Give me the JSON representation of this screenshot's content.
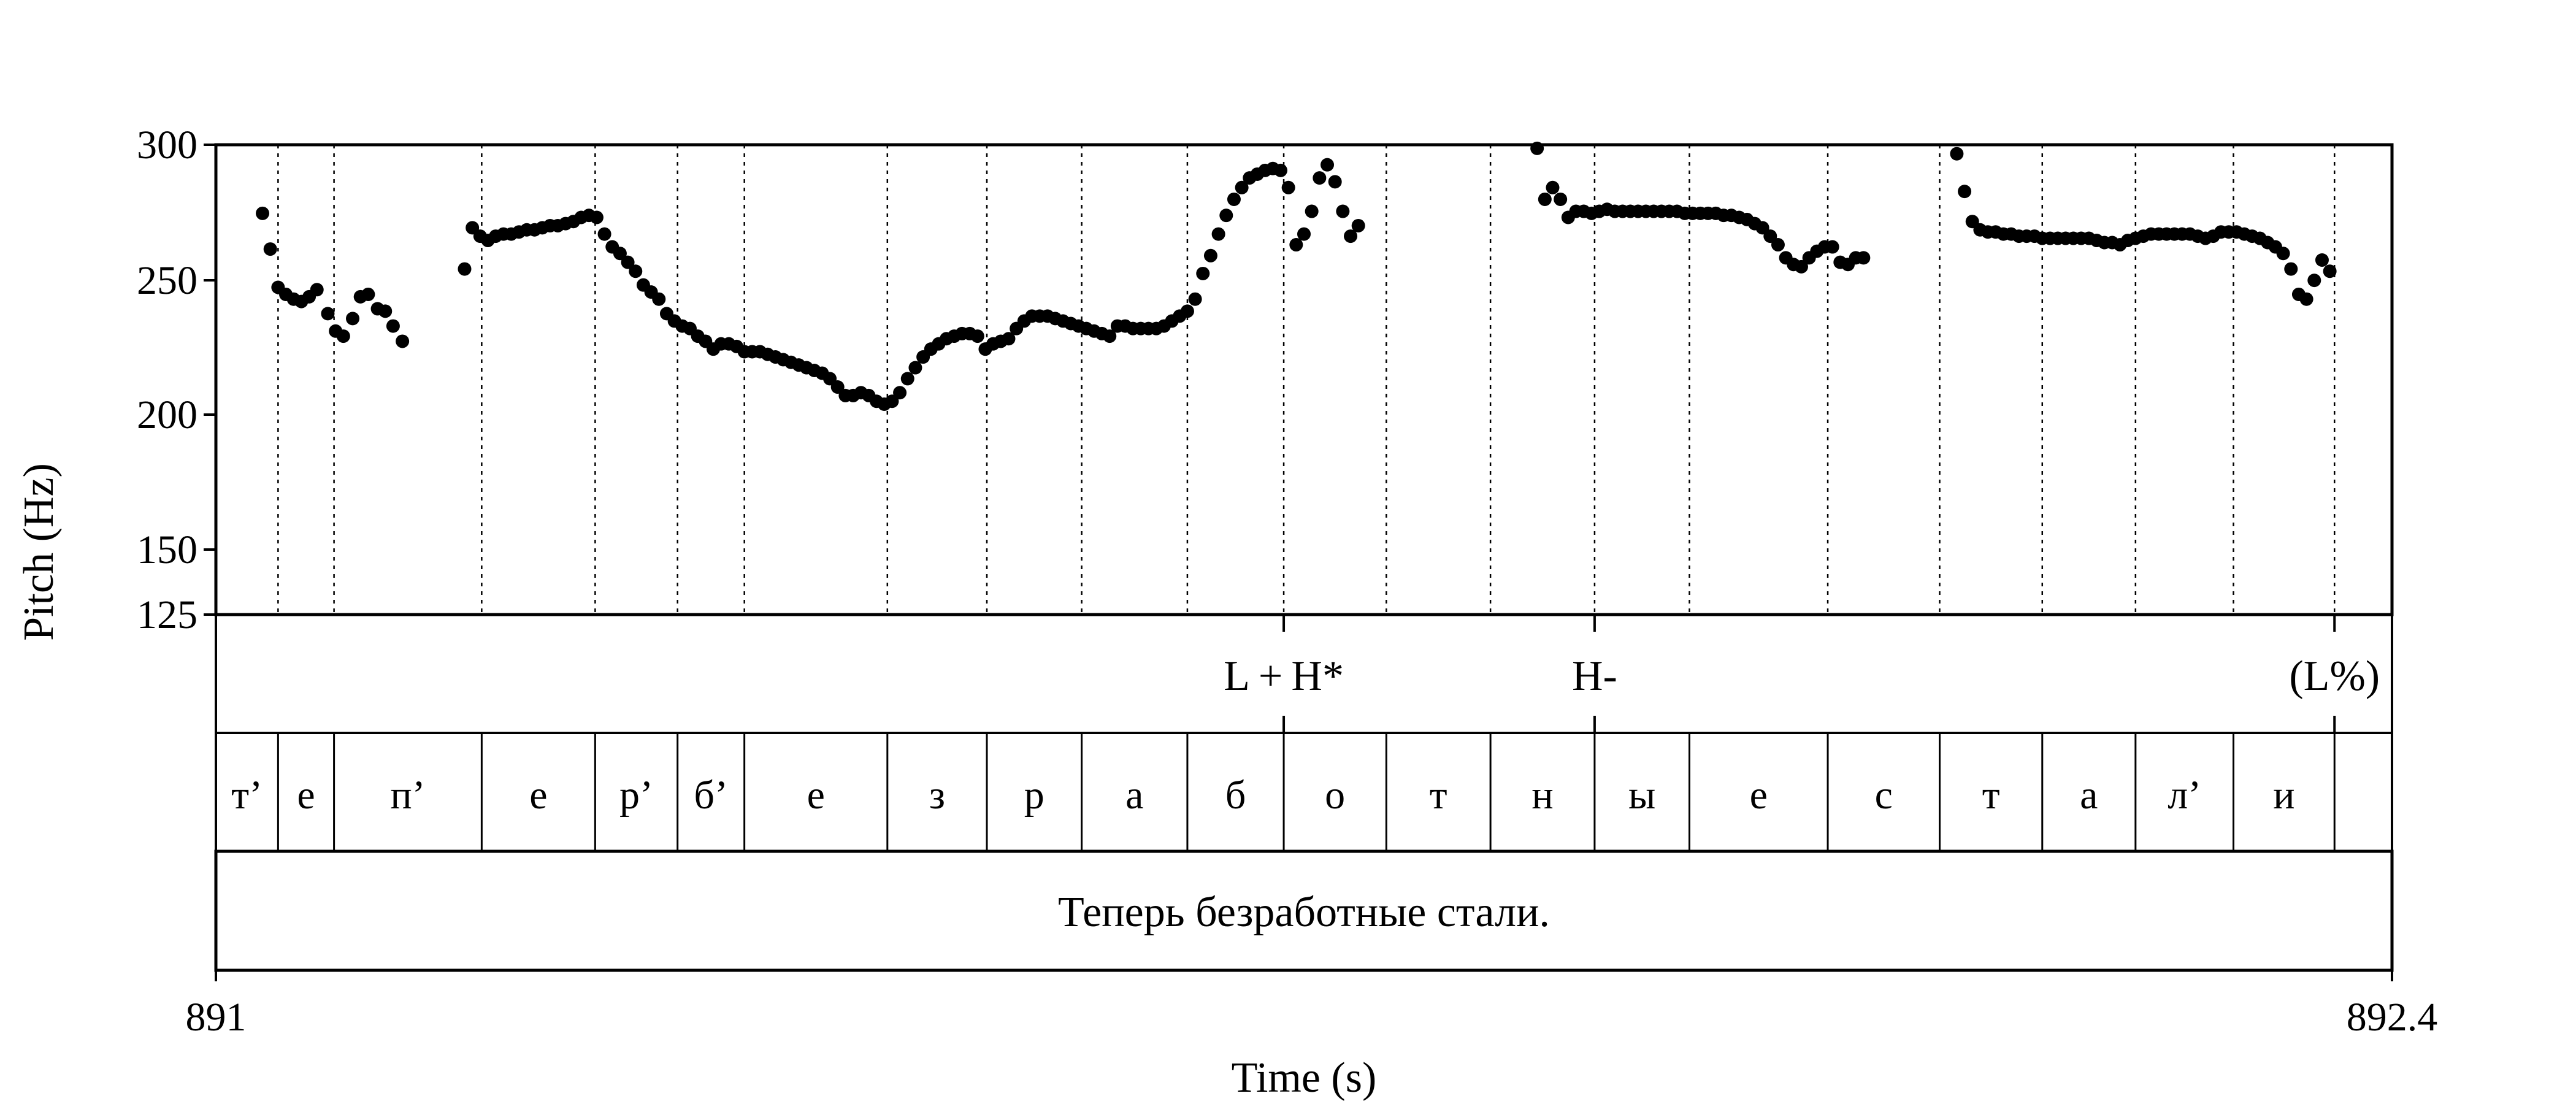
{
  "chart_data": {
    "type": "scatter",
    "title": "",
    "xlabel": "Time (s)",
    "ylabel": "Pitch (Hz)",
    "xlim": [
      891,
      892.4
    ],
    "ylim": [
      125,
      300
    ],
    "y_scale": "log",
    "yticks": [
      "300",
      "250",
      "200",
      "150",
      "125"
    ],
    "xticks": [
      "891",
      "892.4"
    ],
    "grid": false,
    "series": [
      {
        "values": [
          [
            891.03,
            264
          ],
          [
            891.035,
            247
          ],
          [
            891.04,
            230
          ],
          [
            891.045,
            227
          ],
          [
            891.05,
            225
          ],
          [
            891.055,
            224
          ],
          [
            891.06,
            226
          ],
          [
            891.065,
            229
          ],
          [
            891.072,
            219
          ],
          [
            891.077,
            212
          ],
          [
            891.082,
            210
          ],
          [
            891.088,
            217
          ],
          [
            891.093,
            226
          ],
          [
            891.098,
            227
          ],
          [
            891.104,
            221
          ],
          [
            891.109,
            220
          ],
          [
            891.114,
            214
          ],
          [
            891.12,
            208
          ],
          [
            891.16,
            238
          ],
          [
            891.165,
            257
          ],
          [
            891.17,
            253
          ],
          [
            891.175,
            251
          ],
          [
            891.18,
            253
          ],
          [
            891.185,
            254
          ],
          [
            891.19,
            254
          ],
          [
            891.195,
            255
          ],
          [
            891.2,
            256
          ],
          [
            891.205,
            256
          ],
          [
            891.21,
            257
          ],
          [
            891.215,
            258
          ],
          [
            891.22,
            258
          ],
          [
            891.225,
            259
          ],
          [
            891.23,
            260
          ],
          [
            891.235,
            262
          ],
          [
            891.24,
            263
          ],
          [
            891.245,
            262
          ],
          [
            891.25,
            254
          ],
          [
            891.255,
            248
          ],
          [
            891.26,
            245
          ],
          [
            891.265,
            241
          ],
          [
            891.27,
            237
          ],
          [
            891.275,
            231
          ],
          [
            891.28,
            228
          ],
          [
            891.285,
            225
          ],
          [
            891.29,
            219
          ],
          [
            891.295,
            216
          ],
          [
            891.3,
            214
          ],
          [
            891.305,
            213
          ],
          [
            891.31,
            210
          ],
          [
            891.315,
            208
          ],
          [
            891.32,
            205
          ],
          [
            891.325,
            207
          ],
          [
            891.33,
            207
          ],
          [
            891.335,
            206
          ],
          [
            891.34,
            204
          ],
          [
            891.345,
            204
          ],
          [
            891.35,
            204
          ],
          [
            891.355,
            203
          ],
          [
            891.36,
            202
          ],
          [
            891.365,
            201
          ],
          [
            891.37,
            200
          ],
          [
            891.375,
            199
          ],
          [
            891.38,
            198
          ],
          [
            891.385,
            197
          ],
          [
            891.39,
            196
          ],
          [
            891.395,
            194
          ],
          [
            891.4,
            191
          ],
          [
            891.405,
            188
          ],
          [
            891.41,
            188
          ],
          [
            891.415,
            189
          ],
          [
            891.42,
            188
          ],
          [
            891.425,
            186
          ],
          [
            891.43,
            185
          ],
          [
            891.435,
            186
          ],
          [
            891.44,
            189
          ],
          [
            891.445,
            194
          ],
          [
            891.45,
            198
          ],
          [
            891.455,
            202
          ],
          [
            891.46,
            205
          ],
          [
            891.465,
            207
          ],
          [
            891.47,
            209
          ],
          [
            891.475,
            210
          ],
          [
            891.48,
            211
          ],
          [
            891.485,
            211
          ],
          [
            891.49,
            210
          ],
          [
            891.495,
            205
          ],
          [
            891.5,
            207
          ],
          [
            891.505,
            208
          ],
          [
            891.51,
            209
          ],
          [
            891.515,
            213
          ],
          [
            891.52,
            216
          ],
          [
            891.525,
            218
          ],
          [
            891.53,
            218
          ],
          [
            891.535,
            218
          ],
          [
            891.54,
            217
          ],
          [
            891.545,
            216
          ],
          [
            891.55,
            215
          ],
          [
            891.555,
            214
          ],
          [
            891.56,
            213
          ],
          [
            891.565,
            212
          ],
          [
            891.57,
            211
          ],
          [
            891.575,
            210
          ],
          [
            891.58,
            214
          ],
          [
            891.585,
            214
          ],
          [
            891.59,
            213
          ],
          [
            891.595,
            213
          ],
          [
            891.6,
            213
          ],
          [
            891.605,
            213
          ],
          [
            891.61,
            214
          ],
          [
            891.615,
            216
          ],
          [
            891.62,
            218
          ],
          [
            891.625,
            220
          ],
          [
            891.63,
            225
          ],
          [
            891.635,
            236
          ],
          [
            891.64,
            244
          ],
          [
            891.645,
            254
          ],
          [
            891.65,
            263
          ],
          [
            891.655,
            271
          ],
          [
            891.66,
            277
          ],
          [
            891.665,
            282
          ],
          [
            891.67,
            284
          ],
          [
            891.675,
            286
          ],
          [
            891.68,
            287
          ],
          [
            891.685,
            286
          ],
          [
            891.69,
            277
          ],
          [
            891.695,
            249
          ],
          [
            891.7,
            254
          ],
          [
            891.705,
            265
          ],
          [
            891.71,
            282
          ],
          [
            891.715,
            289
          ],
          [
            891.72,
            280
          ],
          [
            891.725,
            265
          ],
          [
            891.73,
            253
          ],
          [
            891.735,
            258
          ],
          [
            891.85,
            298
          ],
          [
            891.855,
            271
          ],
          [
            891.86,
            277
          ],
          [
            891.865,
            271
          ],
          [
            891.87,
            262
          ],
          [
            891.875,
            265
          ],
          [
            891.88,
            265
          ],
          [
            891.885,
            264
          ],
          [
            891.89,
            265
          ],
          [
            891.895,
            266
          ],
          [
            891.9,
            265
          ],
          [
            891.905,
            265
          ],
          [
            891.91,
            265
          ],
          [
            891.915,
            265
          ],
          [
            891.92,
            265
          ],
          [
            891.925,
            265
          ],
          [
            891.93,
            265
          ],
          [
            891.935,
            265
          ],
          [
            891.94,
            265
          ],
          [
            891.945,
            264
          ],
          [
            891.95,
            264
          ],
          [
            891.955,
            264
          ],
          [
            891.96,
            264
          ],
          [
            891.965,
            264
          ],
          [
            891.97,
            263
          ],
          [
            891.975,
            263
          ],
          [
            891.98,
            262
          ],
          [
            891.985,
            261
          ],
          [
            891.99,
            259
          ],
          [
            891.995,
            257
          ],
          [
            892.0,
            253
          ],
          [
            892.005,
            249
          ],
          [
            892.01,
            243
          ],
          [
            892.015,
            240
          ],
          [
            892.02,
            239
          ],
          [
            892.025,
            243
          ],
          [
            892.03,
            246
          ],
          [
            892.035,
            248
          ],
          [
            892.04,
            248
          ],
          [
            892.045,
            241
          ],
          [
            892.05,
            240
          ],
          [
            892.055,
            243
          ],
          [
            892.06,
            243
          ],
          [
            892.12,
            295
          ],
          [
            892.125,
            275
          ],
          [
            892.13,
            260
          ],
          [
            892.135,
            256
          ],
          [
            892.14,
            255
          ],
          [
            892.145,
            255
          ],
          [
            892.15,
            254
          ],
          [
            892.155,
            254
          ],
          [
            892.16,
            253
          ],
          [
            892.165,
            253
          ],
          [
            892.17,
            253
          ],
          [
            892.175,
            252
          ],
          [
            892.18,
            252
          ],
          [
            892.185,
            252
          ],
          [
            892.19,
            252
          ],
          [
            892.195,
            252
          ],
          [
            892.2,
            252
          ],
          [
            892.205,
            252
          ],
          [
            892.21,
            251
          ],
          [
            892.215,
            250
          ],
          [
            892.22,
            250
          ],
          [
            892.225,
            249
          ],
          [
            892.23,
            251
          ],
          [
            892.235,
            252
          ],
          [
            892.24,
            253
          ],
          [
            892.245,
            254
          ],
          [
            892.25,
            254
          ],
          [
            892.255,
            254
          ],
          [
            892.26,
            254
          ],
          [
            892.265,
            254
          ],
          [
            892.27,
            254
          ],
          [
            892.275,
            253
          ],
          [
            892.28,
            252
          ],
          [
            892.285,
            253
          ],
          [
            892.29,
            255
          ],
          [
            892.295,
            255
          ],
          [
            892.3,
            255
          ],
          [
            892.305,
            254
          ],
          [
            892.31,
            253
          ],
          [
            892.315,
            252
          ],
          [
            892.32,
            250
          ],
          [
            892.325,
            248
          ],
          [
            892.33,
            245
          ],
          [
            892.335,
            238
          ],
          [
            892.34,
            227
          ],
          [
            892.345,
            225
          ],
          [
            892.35,
            233
          ],
          [
            892.355,
            242
          ],
          [
            892.36,
            237
          ]
        ]
      }
    ],
    "boundaries": [
      891.04,
      891.076,
      891.171,
      891.244,
      891.297,
      891.34,
      891.432,
      891.496,
      891.557,
      891.625,
      891.687,
      891.753,
      891.82,
      891.887,
      891.948,
      892.037,
      892.109,
      892.175,
      892.235,
      892.298,
      892.363
    ],
    "tiers": {
      "tones": [
        {
          "label": "L + H*",
          "time": 891.687
        },
        {
          "label": "H-",
          "time": 891.887
        },
        {
          "label": "(L%)",
          "time": 892.363
        }
      ],
      "segments": [
        {
          "label": "т’",
          "start": 891.0,
          "end": 891.04
        },
        {
          "label": "е",
          "start": 891.04,
          "end": 891.076
        },
        {
          "label": "п’",
          "start": 891.076,
          "end": 891.171
        },
        {
          "label": "е",
          "start": 891.171,
          "end": 891.244
        },
        {
          "label": "р’",
          "start": 891.244,
          "end": 891.297
        },
        {
          "label": "б’",
          "start": 891.297,
          "end": 891.34
        },
        {
          "label": "е",
          "start": 891.34,
          "end": 891.432
        },
        {
          "label": "з",
          "start": 891.432,
          "end": 891.496
        },
        {
          "label": "р",
          "start": 891.496,
          "end": 891.557
        },
        {
          "label": "а",
          "start": 891.557,
          "end": 891.625
        },
        {
          "label": "б",
          "start": 891.625,
          "end": 891.687
        },
        {
          "label": "о",
          "start": 891.687,
          "end": 891.753
        },
        {
          "label": "т",
          "start": 891.753,
          "end": 891.82
        },
        {
          "label": "н",
          "start": 891.82,
          "end": 891.887
        },
        {
          "label": "ы",
          "start": 891.887,
          "end": 891.948
        },
        {
          "label": "е",
          "start": 891.948,
          "end": 892.037
        },
        {
          "label": "с",
          "start": 892.037,
          "end": 892.109
        },
        {
          "label": "т",
          "start": 892.109,
          "end": 892.175
        },
        {
          "label": "а",
          "start": 892.175,
          "end": 892.235
        },
        {
          "label": "л’",
          "start": 892.235,
          "end": 892.298
        },
        {
          "label": "и",
          "start": 892.298,
          "end": 892.363
        },
        {
          "label": "",
          "start": 892.363,
          "end": 892.4
        }
      ],
      "sentence": "Теперь безработные стали."
    },
    "colors": {
      "points": "#000000",
      "lines": "#000000",
      "background": "#ffffff"
    }
  }
}
